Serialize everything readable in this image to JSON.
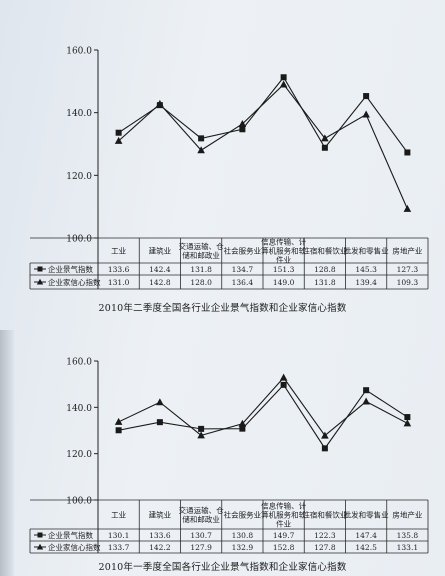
{
  "chart_data": [
    {
      "type": "line",
      "title": "2010年二季度全国各行业企业景气指数和企业家信心指数",
      "categories": [
        "工业",
        "建筑业",
        "交通运输、仓储和邮政业",
        "社会服务业",
        "信息传输、计算机服务和软件业",
        "住宿和餐饮业",
        "批发和零售业",
        "房地产业"
      ],
      "series": [
        {
          "name": "企业景气指数",
          "marker": "square",
          "values": [
            133.6,
            142.4,
            131.8,
            134.7,
            151.3,
            128.8,
            145.3,
            127.3
          ]
        },
        {
          "name": "企业家信心指数",
          "marker": "triangle",
          "values": [
            131.0,
            142.8,
            128.0,
            136.4,
            149.0,
            131.8,
            139.4,
            109.3
          ]
        }
      ],
      "ylim": [
        100,
        160
      ],
      "yticks": [
        "100.0",
        "120.0",
        "140.0",
        "160.0"
      ],
      "table": {
        "headers": [
          "工业",
          "建筑业",
          "交通运输、仓储和邮政业",
          "社会服务业",
          "信息传输、计算机服务和软件业",
          "住宿和餐饮业",
          "批发和零售业",
          "房地产业"
        ],
        "rows": [
          {
            "name": "企业景气指数",
            "cells": [
              "133.6",
              "142.4",
              "131.8",
              "134.7",
              "151.3",
              "128.8",
              "145.3",
              "127.3"
            ]
          },
          {
            "name": "企业家信心指数",
            "cells": [
              "131.0",
              "142.8",
              "128.0",
              "136.4",
              "149.0",
              "131.8",
              "139.4",
              "109.3"
            ]
          }
        ]
      }
    },
    {
      "type": "line",
      "title": "2010年一季度全国各行业企业景气指数和企业家信心指数",
      "categories": [
        "工业",
        "建筑业",
        "交通运输、仓储和邮政业",
        "社会服务业",
        "信息传输、计算机服务和软件业",
        "住宿和餐饮业",
        "批发和零售业",
        "房地产业"
      ],
      "series": [
        {
          "name": "企业景气指数",
          "marker": "square",
          "values": [
            130.1,
            133.6,
            130.7,
            130.8,
            149.7,
            122.3,
            147.4,
            135.8
          ]
        },
        {
          "name": "企业家信心指数",
          "marker": "triangle",
          "values": [
            133.7,
            142.2,
            127.9,
            132.9,
            152.8,
            127.8,
            142.5,
            133.1
          ]
        }
      ],
      "ylim": [
        100,
        160
      ],
      "yticks": [
        "100.0",
        "120.0",
        "140.0",
        "160.0"
      ],
      "table": {
        "headers": [
          "工业",
          "建筑业",
          "交通运输、仓储和邮政业",
          "社会服务业",
          "信息传输、计算机服务和软件业",
          "住宿和餐饮业",
          "批发和零售业",
          "房地产业"
        ],
        "rows": [
          {
            "name": "企业景气指数",
            "cells": [
              "130.1",
              "133.6",
              "130.7",
              "130.8",
              "149.7",
              "122.3",
              "147.4",
              "135.8"
            ]
          },
          {
            "name": "企业家信心指数",
            "cells": [
              "133.7",
              "142.2",
              "127.9",
              "132.9",
              "152.8",
              "127.8",
              "142.5",
              "133.1"
            ]
          }
        ]
      }
    }
  ]
}
